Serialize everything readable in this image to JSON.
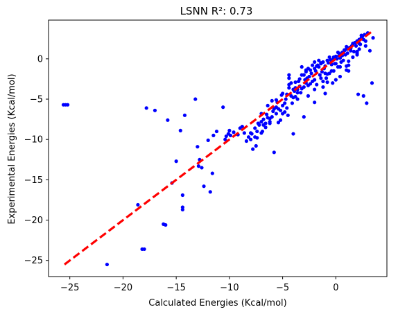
{
  "chart_data": {
    "type": "scatter",
    "title": "LSNN R²: 0.73",
    "xlabel": "Calculated Energies (Kcal/mol)",
    "ylabel": "Experimental Energies (Kcal/mol)",
    "xlim": [
      -27.0,
      4.8
    ],
    "ylim": [
      -27.0,
      4.8
    ],
    "x_ticks": [
      -25,
      -20,
      -15,
      -10,
      -5,
      0
    ],
    "y_ticks": [
      -25,
      -20,
      -15,
      -10,
      -5,
      0
    ],
    "x_tick_labels": [
      "−25",
      "−20",
      "−15",
      "−10",
      "−5",
      "0"
    ],
    "y_tick_labels": [
      "−25",
      "−20",
      "−15",
      "−10",
      "−5",
      "0"
    ],
    "grid": false,
    "point_color": "#0000ff",
    "line_color": "#ff0000",
    "reference_line": {
      "x": [
        -25.5,
        3.3
      ],
      "y": [
        -25.5,
        3.3
      ],
      "style": "dashed"
    },
    "points": {
      "x": [
        -25.6,
        -25.4,
        -25.2,
        -21.5,
        -18.6,
        -18.2,
        -18.0,
        -17.8,
        -17.0,
        -16.2,
        -16.0,
        -15.8,
        -15.4,
        -15.0,
        -14.6,
        -14.4,
        -14.4,
        -14.4,
        -14.2,
        -13.2,
        -13.0,
        -12.9,
        -12.6,
        -12.8,
        -12.4,
        -12.0,
        -11.8,
        -11.6,
        -11.5,
        -11.2,
        -10.6,
        -10.4,
        -10.3,
        -10.1,
        -10.0,
        -9.9,
        -9.6,
        -9.2,
        -9.0,
        -8.8,
        -8.6,
        -8.4,
        -8.2,
        -8.0,
        -7.9,
        -7.8,
        -7.6,
        -7.5,
        -7.4,
        -7.3,
        -7.2,
        -7.0,
        -6.9,
        -6.8,
        -6.6,
        -6.5,
        -6.4,
        -6.2,
        -6.0,
        -5.9,
        -5.8,
        -5.6,
        -5.5,
        -5.4,
        -5.2,
        -5.1,
        -5.0,
        -4.8,
        -4.7,
        -4.6,
        -4.5,
        -4.4,
        -4.2,
        -4.1,
        -4.0,
        -3.9,
        -3.8,
        -3.6,
        -3.5,
        -3.4,
        -3.3,
        -3.2,
        -3.0,
        -2.9,
        -2.8,
        -2.7,
        -2.6,
        -2.5,
        -2.4,
        -2.3,
        -2.2,
        -2.0,
        -1.9,
        -1.8,
        -1.7,
        -1.6,
        -1.5,
        -1.4,
        -1.3,
        -1.2,
        -1.1,
        -1.0,
        -0.9,
        -0.8,
        -0.7,
        -0.6,
        -0.5,
        -0.4,
        -0.3,
        -0.2,
        -0.1,
        0.0,
        0.1,
        0.2,
        0.3,
        0.4,
        0.5,
        0.6,
        0.7,
        0.8,
        0.9,
        1.0,
        1.1,
        1.2,
        1.3,
        1.4,
        1.5,
        1.6,
        1.7,
        1.8,
        1.9,
        2.0,
        2.1,
        2.2,
        2.3,
        2.4,
        2.5,
        2.6,
        2.7,
        2.8,
        2.9,
        3.0,
        3.2,
        3.4,
        3.5,
        -7.6,
        -7.0,
        -6.6,
        -6.2,
        -5.8,
        -5.4,
        -5.0,
        -4.6,
        -4.2,
        -3.8,
        -3.4,
        -3.0,
        -2.6,
        -2.2,
        -1.8,
        -1.4,
        -1.0,
        -0.6,
        -0.2,
        0.2,
        0.6,
        1.0,
        1.4,
        1.8,
        2.2,
        2.6,
        -4.4,
        -3.6,
        -2.8,
        -2.0,
        -1.2,
        -0.4,
        0.4,
        1.2,
        2.0,
        -6.0,
        -5.2,
        -4.4,
        -3.6,
        -2.8,
        -2.0,
        -1.2,
        -0.4,
        0.4,
        1.2,
        2.0,
        2.8,
        -7.0,
        -6.4,
        -5.6,
        -4.8,
        -4.0,
        -3.2,
        -2.4,
        -1.6,
        -0.8,
        0.0,
        0.8,
        1.6,
        2.4,
        -8.0,
        -7.4,
        -6.8,
        -6.2,
        -5.6,
        -5.0,
        -4.4,
        -3.8,
        -3.2,
        -2.6,
        -2.0,
        -1.4,
        -0.8,
        -0.2,
        0.4,
        1.0,
        1.6,
        2.2,
        -4.0,
        -3.0,
        -2.0,
        -1.0,
        0.0,
        1.0,
        2.0
      ],
      "y": [
        -5.7,
        -5.7,
        -5.7,
        -25.5,
        -18.1,
        -23.6,
        -23.6,
        -6.1,
        -6.4,
        -20.5,
        -20.6,
        -7.6,
        -15.4,
        -12.7,
        -8.9,
        -16.9,
        -18.4,
        -18.7,
        -7.0,
        -5.0,
        -10.9,
        -13.3,
        -13.5,
        -12.5,
        -15.8,
        -10.1,
        -16.5,
        -14.2,
        -9.5,
        -9.0,
        -6.0,
        -10.0,
        -9.6,
        -9.3,
        -8.9,
        -9.5,
        -9.1,
        -9.4,
        -8.6,
        -8.4,
        -9.2,
        -10.2,
        -9.7,
        -10.0,
        -9.3,
        -11.2,
        -8.6,
        -10.8,
        -9.0,
        -8.0,
        -8.2,
        -6.8,
        -9.0,
        -7.5,
        -8.5,
        -6.9,
        -7.3,
        -8.0,
        -7.2,
        -6.5,
        -11.6,
        -6.8,
        -5.4,
        -6.2,
        -7.6,
        -4.5,
        -5.8,
        -6.6,
        -5.0,
        -4.4,
        -7.0,
        -3.2,
        -4.6,
        -5.5,
        -3.8,
        -4.0,
        -3.6,
        -5.0,
        -2.8,
        -3.4,
        -4.2,
        -2.0,
        -3.5,
        -2.6,
        -1.6,
        -2.4,
        -4.6,
        -2.2,
        -1.4,
        -1.8,
        -2.8,
        -1.2,
        -1.5,
        -3.2,
        -0.8,
        -1.0,
        -2.0,
        -0.6,
        -1.6,
        -0.4,
        -1.2,
        -0.9,
        -2.4,
        -0.2,
        -0.5,
        -1.8,
        -0.1,
        -0.3,
        -3.0,
        0.2,
        -0.6,
        0.3,
        0.0,
        -1.0,
        0.4,
        0.6,
        -0.4,
        0.8,
        -0.2,
        1.0,
        0.5,
        1.2,
        0.7,
        -1.5,
        1.4,
        1.0,
        1.6,
        1.8,
        0.9,
        2.0,
        1.6,
        2.2,
        -4.4,
        2.4,
        1.8,
        2.6,
        2.8,
        -4.6,
        3.0,
        2.2,
        -5.5,
        3.2,
        1.0,
        -3.0,
        2.6,
        -9.7,
        -9.2,
        -8.0,
        -7.4,
        -6.2,
        -7.9,
        -4.3,
        -6.1,
        -3.0,
        -2.9,
        -2.5,
        -2.0,
        -1.2,
        -0.8,
        -0.9,
        -0.5,
        -1.8,
        0.2,
        0.0,
        0.8,
        0.4,
        1.5,
        1.3,
        2.0,
        1.9,
        2.4,
        -2.0,
        -3.8,
        -3.0,
        -2.6,
        -3.5,
        -1.5,
        -2.2,
        -0.3,
        0.9,
        -5.2,
        -6.4,
        -3.6,
        -4.2,
        -1.4,
        -3.8,
        -2.8,
        -0.7,
        -1.0,
        -0.8,
        0.7,
        1.6,
        -7.8,
        -5.8,
        -6.0,
        -5.5,
        -4.8,
        -1.0,
        -3.1,
        -0.2,
        -1.9,
        -0.6,
        1.1,
        1.9,
        2.9,
        -9.2,
        -9.8,
        -8.2,
        -7.8,
        -5.1,
        -6.8,
        -2.4,
        -4.7,
        -3.7,
        -3.3,
        -0.4,
        -2.4,
        -2.9,
        -1.5,
        0.1,
        -0.9,
        0.2,
        1.2,
        -9.3,
        -7.2,
        -5.4,
        -4.3,
        -2.6,
        -1.4,
        0.5
      ]
    }
  }
}
